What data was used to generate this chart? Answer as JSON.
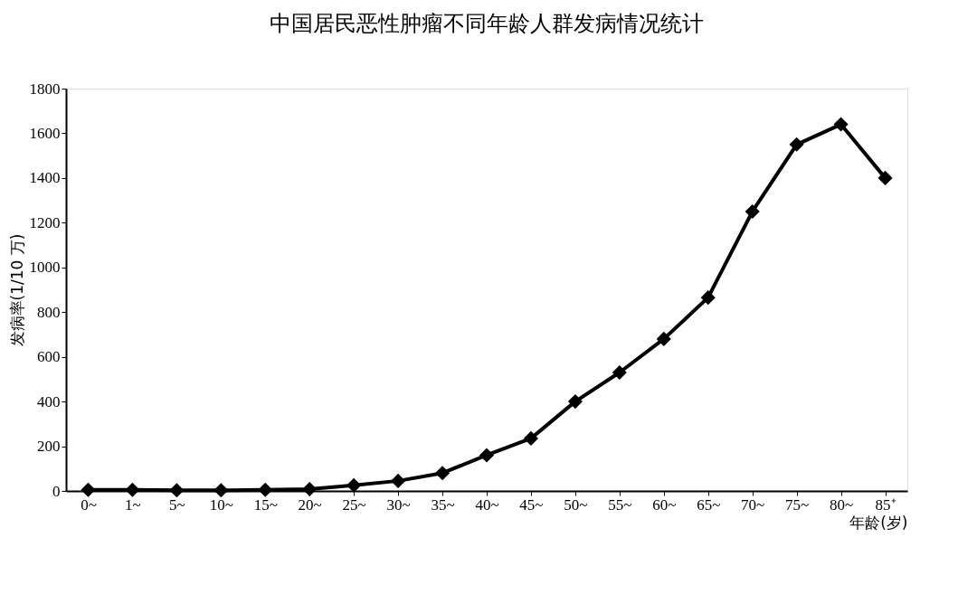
{
  "chart_data": {
    "type": "line",
    "title": "中国居民恶性肿瘤不同年龄人群发病情况统计",
    "xlabel": "年龄(岁)",
    "ylabel": "发病率(1/10 万)",
    "categories": [
      "0~",
      "1~",
      "5~",
      "10~",
      "15~",
      "20~",
      "25~",
      "30~",
      "35~",
      "40~",
      "45~",
      "50~",
      "55~",
      "60~",
      "65~",
      "70~",
      "75~",
      "80~",
      "85⁺"
    ],
    "series": [
      {
        "color": "#000000",
        "values": [
          5,
          5,
          3,
          3,
          5,
          8,
          25,
          45,
          80,
          160,
          235,
          400,
          530,
          680,
          865,
          1250,
          1550,
          1640,
          1400
        ]
      }
    ],
    "ylim": [
      0,
      1800
    ],
    "yticks": [
      0,
      200,
      400,
      600,
      800,
      1000,
      1200,
      1400,
      1600,
      1800
    ],
    "grid": false,
    "marker": "diamond",
    "line_style": "solid"
  }
}
